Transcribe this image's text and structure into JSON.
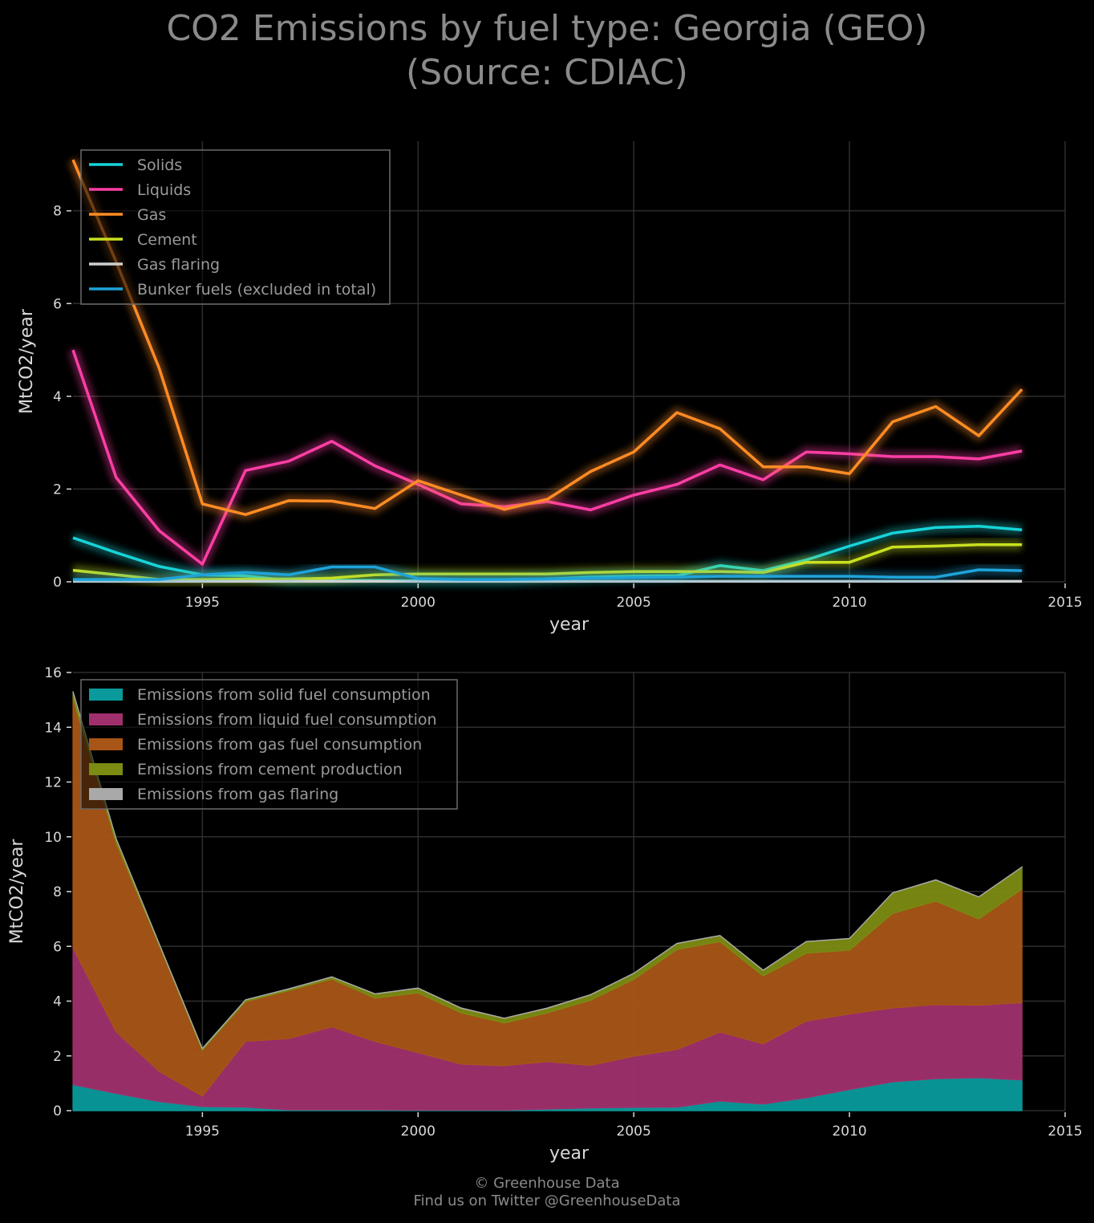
{
  "title": {
    "line1": "CO2 Emissions by fuel type: Georgia (GEO)",
    "line2": "(Source: CDIAC)"
  },
  "footer": {
    "line1": "© Greenhouse Data",
    "line2": "Find us on Twitter @GreenhouseData"
  },
  "colors": {
    "background": "#000000",
    "solids": "#17d4d8",
    "liquids": "#ff3ea5",
    "gas": "#ff8c24",
    "cement": "#c8e021",
    "gas_flaring": "#d0d0d0",
    "bunker": "#1fa3d9",
    "area_solid": "#0a9a9b",
    "area_liquid": "#a0306d",
    "area_gas": "#a85517",
    "area_cement": "#7c8b12",
    "area_flaring": "#a9a9a9"
  },
  "chart_data": [
    {
      "type": "line",
      "xlabel": "year",
      "ylabel": "MtCO2/year",
      "xlim": [
        1992,
        2015
      ],
      "ylim": [
        0,
        9.5
      ],
      "xticks": [
        1995,
        2000,
        2005,
        2010,
        2015
      ],
      "yticks": [
        0,
        2,
        4,
        6,
        8
      ],
      "grid": true,
      "legend_position": "top-left",
      "x": [
        1992,
        1993,
        1994,
        1995,
        1996,
        1997,
        1998,
        1999,
        2000,
        2001,
        2002,
        2003,
        2004,
        2005,
        2006,
        2007,
        2008,
        2009,
        2010,
        2011,
        2012,
        2013,
        2014
      ],
      "series": [
        {
          "name": "Solids",
          "color_key": "solids",
          "values": [
            0.95,
            0.63,
            0.33,
            0.15,
            0.13,
            0.03,
            0.03,
            0.03,
            0.02,
            0.02,
            0.02,
            0.06,
            0.1,
            0.12,
            0.13,
            0.35,
            0.24,
            0.47,
            0.77,
            1.05,
            1.17,
            1.2,
            1.12
          ]
        },
        {
          "name": "Liquids",
          "color_key": "liquids",
          "values": [
            5.0,
            2.25,
            1.1,
            0.38,
            2.4,
            2.6,
            3.03,
            2.5,
            2.1,
            1.68,
            1.62,
            1.73,
            1.55,
            1.87,
            2.1,
            2.52,
            2.2,
            2.8,
            2.76,
            2.7,
            2.7,
            2.65,
            2.82
          ]
        },
        {
          "name": "Gas",
          "color_key": "gas",
          "values": [
            9.1,
            6.9,
            4.6,
            1.68,
            1.45,
            1.75,
            1.74,
            1.58,
            2.18,
            1.87,
            1.56,
            1.78,
            2.38,
            2.8,
            3.65,
            3.3,
            2.48,
            2.48,
            2.33,
            3.45,
            3.78,
            3.15,
            4.15
          ]
        },
        {
          "name": "Cement",
          "color_key": "cement",
          "values": [
            0.25,
            0.15,
            0.05,
            0.05,
            0.06,
            0.06,
            0.08,
            0.15,
            0.17,
            0.17,
            0.17,
            0.17,
            0.2,
            0.22,
            0.22,
            0.22,
            0.2,
            0.42,
            0.42,
            0.75,
            0.77,
            0.8,
            0.8
          ]
        },
        {
          "name": "Gas flaring",
          "color_key": "gas_flaring",
          "values": [
            0.01,
            0.01,
            0.01,
            0.01,
            0.01,
            0.01,
            0.01,
            0.01,
            0.01,
            0.01,
            0.01,
            0.01,
            0.01,
            0.01,
            0.01,
            0.01,
            0.01,
            0.01,
            0.01,
            0.01,
            0.01,
            0.01,
            0.01
          ]
        },
        {
          "name": "Bunker fuels (excluded in total)",
          "color_key": "bunker",
          "values": [
            0.05,
            0.05,
            0.05,
            0.15,
            0.2,
            0.15,
            0.32,
            0.32,
            0.07,
            0.05,
            0.05,
            0.06,
            0.08,
            0.09,
            0.1,
            0.12,
            0.12,
            0.12,
            0.12,
            0.1,
            0.1,
            0.26,
            0.24
          ]
        }
      ]
    },
    {
      "type": "area",
      "stacked": true,
      "xlabel": "year",
      "ylabel": "MtCO2/year",
      "xlim": [
        1992,
        2015
      ],
      "ylim": [
        0,
        16
      ],
      "xticks": [
        1995,
        2000,
        2005,
        2010,
        2015
      ],
      "yticks": [
        0,
        2,
        4,
        6,
        8,
        10,
        12,
        14,
        16
      ],
      "grid": true,
      "legend_position": "top-left",
      "x": [
        1992,
        1993,
        1994,
        1995,
        1996,
        1997,
        1998,
        1999,
        2000,
        2001,
        2002,
        2003,
        2004,
        2005,
        2006,
        2007,
        2008,
        2009,
        2010,
        2011,
        2012,
        2013,
        2014
      ],
      "series": [
        {
          "name": "Emissions from solid fuel consumption",
          "color_key": "area_solid",
          "values": [
            0.95,
            0.63,
            0.33,
            0.15,
            0.13,
            0.03,
            0.03,
            0.03,
            0.02,
            0.02,
            0.02,
            0.06,
            0.1,
            0.12,
            0.13,
            0.35,
            0.24,
            0.47,
            0.77,
            1.05,
            1.17,
            1.2,
            1.12
          ]
        },
        {
          "name": "Emissions from liquid fuel consumption",
          "color_key": "area_liquid",
          "values": [
            5.0,
            2.25,
            1.1,
            0.38,
            2.4,
            2.6,
            3.03,
            2.5,
            2.1,
            1.68,
            1.62,
            1.73,
            1.55,
            1.87,
            2.1,
            2.52,
            2.2,
            2.8,
            2.76,
            2.7,
            2.7,
            2.65,
            2.82
          ]
        },
        {
          "name": "Emissions from gas fuel consumption",
          "color_key": "area_gas",
          "values": [
            9.1,
            6.9,
            4.6,
            1.68,
            1.45,
            1.75,
            1.74,
            1.58,
            2.18,
            1.87,
            1.56,
            1.78,
            2.38,
            2.8,
            3.65,
            3.3,
            2.48,
            2.48,
            2.33,
            3.45,
            3.78,
            3.15,
            4.15
          ]
        },
        {
          "name": "Emissions from cement production",
          "color_key": "area_cement",
          "values": [
            0.25,
            0.15,
            0.05,
            0.05,
            0.06,
            0.06,
            0.08,
            0.15,
            0.17,
            0.17,
            0.17,
            0.17,
            0.2,
            0.22,
            0.22,
            0.22,
            0.2,
            0.42,
            0.42,
            0.75,
            0.77,
            0.8,
            0.8
          ]
        },
        {
          "name": "Emissions from gas flaring",
          "color_key": "area_flaring",
          "values": [
            0.01,
            0.01,
            0.01,
            0.01,
            0.01,
            0.01,
            0.01,
            0.01,
            0.01,
            0.01,
            0.01,
            0.01,
            0.01,
            0.01,
            0.01,
            0.01,
            0.01,
            0.01,
            0.01,
            0.01,
            0.01,
            0.01,
            0.01
          ]
        }
      ]
    }
  ]
}
